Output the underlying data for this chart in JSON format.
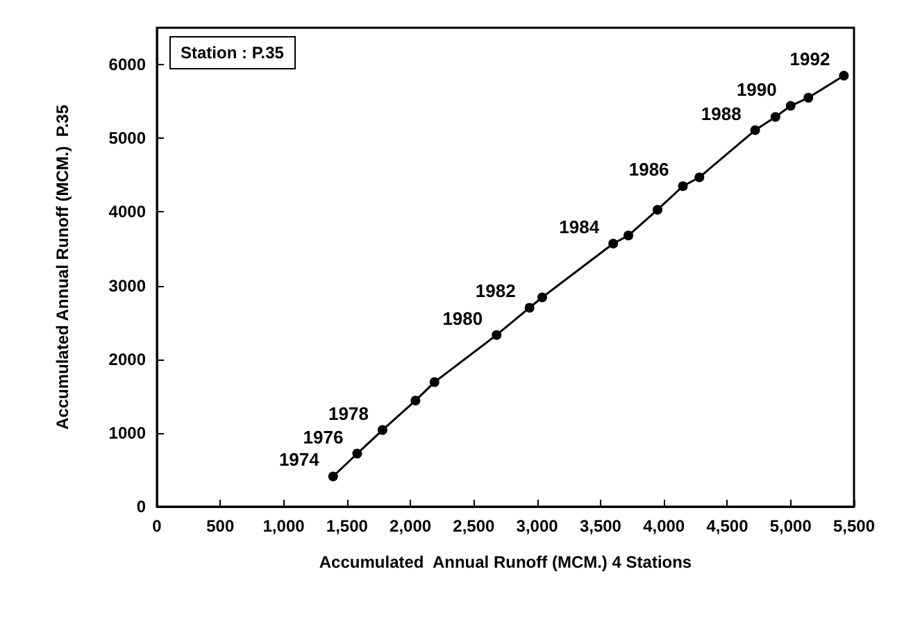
{
  "chart_data": {
    "type": "line",
    "title": "Station : P.35",
    "xlabel": "Accumulated  Annual Runoff (MCM.) 4 Stations",
    "ylabel": "Accumulated Annual Runoff (MCM.)  P.35",
    "x": [
      1390,
      1580,
      1780,
      2040,
      2190,
      2680,
      2940,
      3040,
      3600,
      3720,
      3950,
      4150,
      4280,
      4720,
      4880,
      5000,
      5140,
      5420
    ],
    "series": [
      {
        "color": "#000000",
        "values": [
          410,
          720,
          1040,
          1440,
          1690,
          2330,
          2700,
          2840,
          3570,
          3680,
          4030,
          4350,
          4470,
          5110,
          5290,
          5440,
          5550,
          5850
        ]
      }
    ],
    "annotations": [
      {
        "text": "1974",
        "x": 1390,
        "y": 410
      },
      {
        "text": "1976",
        "x": 1580,
        "y": 720
      },
      {
        "text": "1978",
        "x": 1780,
        "y": 1040
      },
      {
        "text": "1980",
        "x": 2680,
        "y": 2330
      },
      {
        "text": "1982",
        "x": 2940,
        "y": 2700
      },
      {
        "text": "1984",
        "x": 3600,
        "y": 3570
      },
      {
        "text": "1986",
        "x": 4150,
        "y": 4350
      },
      {
        "text": "1988",
        "x": 4720,
        "y": 5110
      },
      {
        "text": "1990",
        "x": 5000,
        "y": 5440
      },
      {
        "text": "1992",
        "x": 5420,
        "y": 5850
      }
    ],
    "xlim": [
      0,
      5500
    ],
    "ylim": [
      0,
      6500
    ],
    "xticks": [
      0,
      500,
      {
        "value": 1000,
        "label": "1,000"
      },
      {
        "value": 1500,
        "label": "1,500"
      },
      {
        "value": 2000,
        "label": "2,000"
      },
      {
        "value": 2500,
        "label": "2,500"
      },
      {
        "value": 3000,
        "label": "3,000"
      },
      {
        "value": 3500,
        "label": "3,500"
      },
      {
        "value": 4000,
        "label": "4,000"
      },
      {
        "value": 4500,
        "label": "4,500"
      },
      {
        "value": 5000,
        "label": "5,000"
      },
      {
        "value": 5500,
        "label": "5,500"
      }
    ],
    "yticks": [
      0,
      1000,
      2000,
      3000,
      4000,
      5000,
      6000
    ],
    "marker": "circle",
    "line_style": "solid",
    "grid": false
  }
}
